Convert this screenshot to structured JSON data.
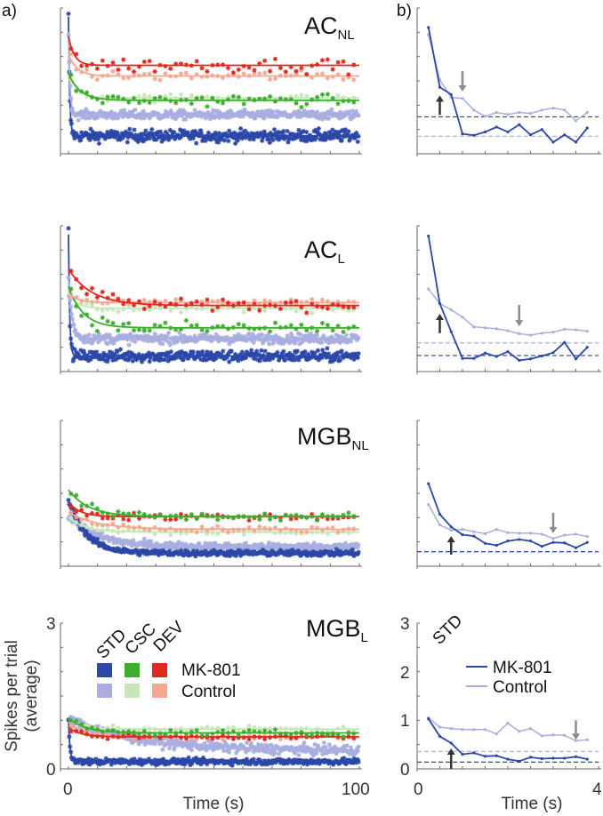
{
  "figure": {
    "label_a": "a)",
    "label_b": "b)"
  },
  "colors": {
    "std_mk801": "#2b47a8",
    "std_control": "#a9aee0",
    "csc_mk801": "#3cad2c",
    "csc_control": "#c8e7b8",
    "dev_mk801": "#e2271f",
    "dev_control": "#f5a790",
    "arrow_black": "#333333",
    "arrow_gray": "#8c8c8c"
  },
  "legend_a": {
    "columns": [
      "STD",
      "CSC",
      "DEV"
    ],
    "rows": [
      "MK-801",
      "Control"
    ]
  },
  "legend_b": {
    "column": "STD",
    "rows": [
      "MK-801",
      "Control"
    ]
  },
  "chart_data": [
    {
      "type": "scatter",
      "panel": "a",
      "title_main": "AC",
      "title_sub": "NL",
      "xlim": [
        0,
        100
      ],
      "ylim": [
        0,
        3
      ],
      "series": [
        {
          "name": "STD MK-801",
          "color_key": "std_mk801",
          "fit": {
            "asymptote": 0.37,
            "amplitude": 2.45,
            "tau": 0.4
          },
          "noise": 0.12,
          "n": 380
        },
        {
          "name": "STD Control",
          "color_key": "std_control",
          "fit": {
            "asymptote": 0.8,
            "amplitude": 1.7,
            "tau": 0.5
          },
          "noise": 0.09,
          "n": 380
        },
        {
          "name": "CSC Control",
          "color_key": "csc_control",
          "fit": {
            "asymptote": 1.15,
            "amplitude": 0.5,
            "tau": 3
          },
          "noise": 0.08,
          "n": 55
        },
        {
          "name": "CSC MK-801",
          "color_key": "csc_mk801",
          "fit": {
            "asymptote": 1.1,
            "amplitude": 0.55,
            "tau": 4
          },
          "noise": 0.12,
          "n": 55
        },
        {
          "name": "DEV Control",
          "color_key": "dev_control",
          "fit": {
            "asymptote": 1.6,
            "amplitude": 0.45,
            "tau": 3
          },
          "noise": 0.1,
          "n": 55
        },
        {
          "name": "DEV MK-801",
          "color_key": "dev_mk801",
          "fit": {
            "asymptote": 1.82,
            "amplitude": 0.6,
            "tau": 2
          },
          "noise": 0.15,
          "n": 55
        }
      ]
    },
    {
      "type": "scatter",
      "panel": "a",
      "title_main": "AC",
      "title_sub": "L",
      "xlim": [
        0,
        100
      ],
      "ylim": [
        0,
        3
      ],
      "series": [
        {
          "name": "STD MK-801",
          "color_key": "std_mk801",
          "fit": {
            "asymptote": 0.32,
            "amplitude": 2.5,
            "tau": 0.4
          },
          "noise": 0.12,
          "n": 380
        },
        {
          "name": "STD Control",
          "color_key": "std_control",
          "fit": {
            "asymptote": 0.68,
            "amplitude": 1.2,
            "tau": 1.2
          },
          "noise": 0.1,
          "n": 380
        },
        {
          "name": "CSC Control",
          "color_key": "csc_control",
          "fit": {
            "asymptote": 1.3,
            "amplitude": 0.3,
            "tau": 3
          },
          "noise": 0.08,
          "n": 55
        },
        {
          "name": "CSC MK-801",
          "color_key": "csc_mk801",
          "fit": {
            "asymptote": 0.9,
            "amplitude": 0.85,
            "tau": 5
          },
          "noise": 0.15,
          "n": 55
        },
        {
          "name": "DEV Control",
          "color_key": "dev_control",
          "fit": {
            "asymptote": 1.42,
            "amplitude": 0.2,
            "tau": 3
          },
          "noise": 0.07,
          "n": 55
        },
        {
          "name": "DEV MK-801",
          "color_key": "dev_mk801",
          "fit": {
            "asymptote": 1.36,
            "amplitude": 0.75,
            "tau": 8
          },
          "noise": 0.12,
          "n": 55
        }
      ]
    },
    {
      "type": "scatter",
      "panel": "a",
      "title_main": "MGB",
      "title_sub": "NL",
      "xlim": [
        0,
        100
      ],
      "ylim": [
        0,
        3
      ],
      "series": [
        {
          "name": "STD Control",
          "color_key": "std_control",
          "fit": {
            "asymptote": 0.4,
            "amplitude": 0.65,
            "tau": 10
          },
          "noise": 0.08,
          "n": 380
        },
        {
          "name": "STD MK-801",
          "color_key": "std_mk801",
          "fit": {
            "asymptote": 0.27,
            "amplitude": 1.1,
            "tau": 6
          },
          "noise": 0.06,
          "n": 380
        },
        {
          "name": "CSC Control",
          "color_key": "csc_control",
          "fit": {
            "asymptote": 0.7,
            "amplitude": 0.3,
            "tau": 6
          },
          "noise": 0.07,
          "n": 55
        },
        {
          "name": "DEV Control",
          "color_key": "dev_control",
          "fit": {
            "asymptote": 0.76,
            "amplitude": 0.35,
            "tau": 10
          },
          "noise": 0.06,
          "n": 55
        },
        {
          "name": "DEV MK-801",
          "color_key": "dev_mk801",
          "fit": {
            "asymptote": 1.02,
            "amplitude": 0.3,
            "tau": 4
          },
          "noise": 0.08,
          "n": 55
        },
        {
          "name": "CSC MK-801",
          "color_key": "csc_mk801",
          "fit": {
            "asymptote": 1.02,
            "amplitude": 0.55,
            "tau": 7
          },
          "noise": 0.08,
          "n": 55
        }
      ]
    },
    {
      "type": "scatter",
      "panel": "a",
      "title_main": "MGB",
      "title_sub": "L",
      "xlim": [
        0,
        100
      ],
      "ylim": [
        0,
        3
      ],
      "yticks": [
        "0",
        "3"
      ],
      "xticks": [
        "0",
        "100"
      ],
      "xlabel": "Time (s)",
      "ylabel_line1": "Spikes per trial",
      "ylabel_line2": "(average)",
      "series": [
        {
          "name": "STD Control",
          "color_key": "std_control",
          "fit": {
            "asymptote": 0.37,
            "amplitude": 0.65,
            "tau": 25
          },
          "noise": 0.1,
          "n": 380
        },
        {
          "name": "STD MK-801",
          "color_key": "std_mk801",
          "fit": {
            "asymptote": 0.15,
            "amplitude": 0.85,
            "tau": 0.5
          },
          "noise": 0.06,
          "n": 380
        },
        {
          "name": "CSC Control",
          "color_key": "csc_control",
          "fit": {
            "asymptote": 0.82,
            "amplitude": 0.2,
            "tau": 5
          },
          "noise": 0.07,
          "n": 55
        },
        {
          "name": "DEV Control",
          "color_key": "dev_control",
          "fit": {
            "asymptote": 0.66,
            "amplitude": 0.3,
            "tau": 5
          },
          "noise": 0.07,
          "n": 55
        },
        {
          "name": "DEV MK-801",
          "color_key": "dev_mk801",
          "fit": {
            "asymptote": 0.66,
            "amplitude": 0.2,
            "tau": 4
          },
          "noise": 0.05,
          "n": 55
        },
        {
          "name": "CSC MK-801",
          "color_key": "csc_mk801",
          "fit": {
            "asymptote": 0.74,
            "amplitude": 0.3,
            "tau": 6
          },
          "noise": 0.06,
          "n": 55
        }
      ]
    },
    {
      "type": "line",
      "panel": "b",
      "region": "AC_NL",
      "xlim": [
        0,
        4
      ],
      "ylim": [
        0,
        3
      ],
      "x": [
        0.25,
        0.5,
        0.75,
        1,
        1.25,
        1.5,
        1.75,
        2,
        2.25,
        2.5,
        2.75,
        3,
        3.25,
        3.5,
        3.75
      ],
      "series": [
        {
          "name": "Control",
          "color_key": "std_control",
          "values": [
            2.45,
            1.52,
            1.16,
            1.14,
            0.9,
            0.77,
            0.85,
            0.81,
            0.85,
            0.83,
            0.9,
            0.94,
            0.9,
            0.68,
            0.85
          ],
          "baseline": 0.36
        },
        {
          "name": "MK-801",
          "color_key": "std_mk801",
          "values": [
            2.6,
            1.37,
            1.22,
            0.41,
            0.38,
            0.45,
            0.55,
            0.45,
            0.6,
            0.39,
            0.5,
            0.24,
            0.39,
            0.24,
            0.53
          ],
          "baseline": 0.76
        }
      ],
      "arrows": [
        {
          "kind": "up",
          "color_key": "arrow_black",
          "x": 0.5,
          "from": 0.8,
          "to": 1.2
        },
        {
          "kind": "down",
          "color_key": "arrow_gray",
          "x": 1.0,
          "from": 1.7,
          "to": 1.28
        }
      ]
    },
    {
      "type": "line",
      "panel": "b",
      "region": "AC_L",
      "xlim": [
        0,
        4
      ],
      "ylim": [
        0,
        3
      ],
      "x": [
        0.25,
        0.5,
        0.75,
        1,
        1.25,
        1.5,
        1.75,
        2,
        2.25,
        2.5,
        2.75,
        3,
        3.25,
        3.5,
        3.75
      ],
      "series": [
        {
          "name": "Control",
          "color_key": "std_control",
          "values": [
            1.7,
            1.4,
            1.27,
            1.12,
            0.92,
            0.9,
            0.88,
            0.84,
            0.78,
            0.75,
            0.79,
            0.81,
            0.87,
            0.86,
            0.83
          ],
          "baseline": 0.59
        },
        {
          "name": "MK-801",
          "color_key": "std_mk801",
          "values": [
            2.79,
            1.4,
            0.82,
            0.27,
            0.27,
            0.38,
            0.31,
            0.41,
            0.23,
            0.26,
            0.32,
            0.39,
            0.6,
            0.26,
            0.5
          ],
          "baseline": 0.33
        }
      ],
      "arrows": [
        {
          "kind": "up",
          "color_key": "arrow_black",
          "x": 0.5,
          "from": 0.79,
          "to": 1.19
        },
        {
          "kind": "down",
          "color_key": "arrow_gray",
          "x": 2.25,
          "from": 1.37,
          "to": 0.93
        }
      ]
    },
    {
      "type": "line",
      "panel": "b",
      "region": "MGB_NL",
      "xlim": [
        0,
        4
      ],
      "ylim": [
        0,
        3
      ],
      "x": [
        0.25,
        0.5,
        0.75,
        1,
        1.25,
        1.5,
        1.75,
        2,
        2.25,
        2.5,
        2.75,
        3,
        3.25,
        3.5,
        3.75
      ],
      "series": [
        {
          "name": "Control",
          "color_key": "std_control",
          "values": [
            1.27,
            0.85,
            0.74,
            0.76,
            0.71,
            0.67,
            0.76,
            0.69,
            0.68,
            0.68,
            0.66,
            0.57,
            0.64,
            0.66,
            0.61
          ],
          "baseline": 0.3
        },
        {
          "name": "MK-801",
          "color_key": "std_mk801",
          "values": [
            1.7,
            1.07,
            0.81,
            0.65,
            0.62,
            0.47,
            0.43,
            0.52,
            0.55,
            0.52,
            0.41,
            0.49,
            0.48,
            0.38,
            0.49
          ],
          "baseline": 0.3
        }
      ],
      "arrows": [
        {
          "kind": "up",
          "color_key": "arrow_black",
          "x": 0.75,
          "from": 0.24,
          "to": 0.62
        },
        {
          "kind": "down",
          "color_key": "arrow_gray",
          "x": 3.0,
          "from": 1.1,
          "to": 0.68
        }
      ]
    },
    {
      "type": "line",
      "panel": "b",
      "region": "MGB_L",
      "xlim": [
        0,
        4
      ],
      "ylim": [
        0,
        3
      ],
      "yticks": [
        "0",
        "1",
        "2",
        "3"
      ],
      "xticks": [
        "0",
        "4"
      ],
      "xlabel": "Time (s)",
      "x": [
        0.25,
        0.5,
        0.75,
        1,
        1.25,
        1.5,
        1.75,
        2,
        2.25,
        2.5,
        2.75,
        3,
        3.25,
        3.5,
        3.75
      ],
      "series": [
        {
          "name": "Control",
          "color_key": "std_control",
          "values": [
            1.05,
            0.86,
            0.83,
            0.81,
            0.81,
            0.81,
            0.72,
            0.94,
            0.77,
            0.83,
            0.68,
            0.7,
            0.69,
            0.58,
            0.6
          ],
          "baseline": 0.36
        },
        {
          "name": "MK-801",
          "color_key": "std_mk801",
          "values": [
            1.03,
            0.67,
            0.53,
            0.3,
            0.33,
            0.26,
            0.27,
            0.2,
            0.16,
            0.24,
            0.21,
            0.22,
            0.22,
            0.25,
            0.2
          ],
          "baseline": 0.14
        }
      ],
      "arrows": [
        {
          "kind": "up",
          "color_key": "arrow_black",
          "x": 0.75,
          "from": 0.0,
          "to": 0.42
        },
        {
          "kind": "down",
          "color_key": "arrow_gray",
          "x": 3.5,
          "from": 1.0,
          "to": 0.6
        }
      ]
    }
  ]
}
